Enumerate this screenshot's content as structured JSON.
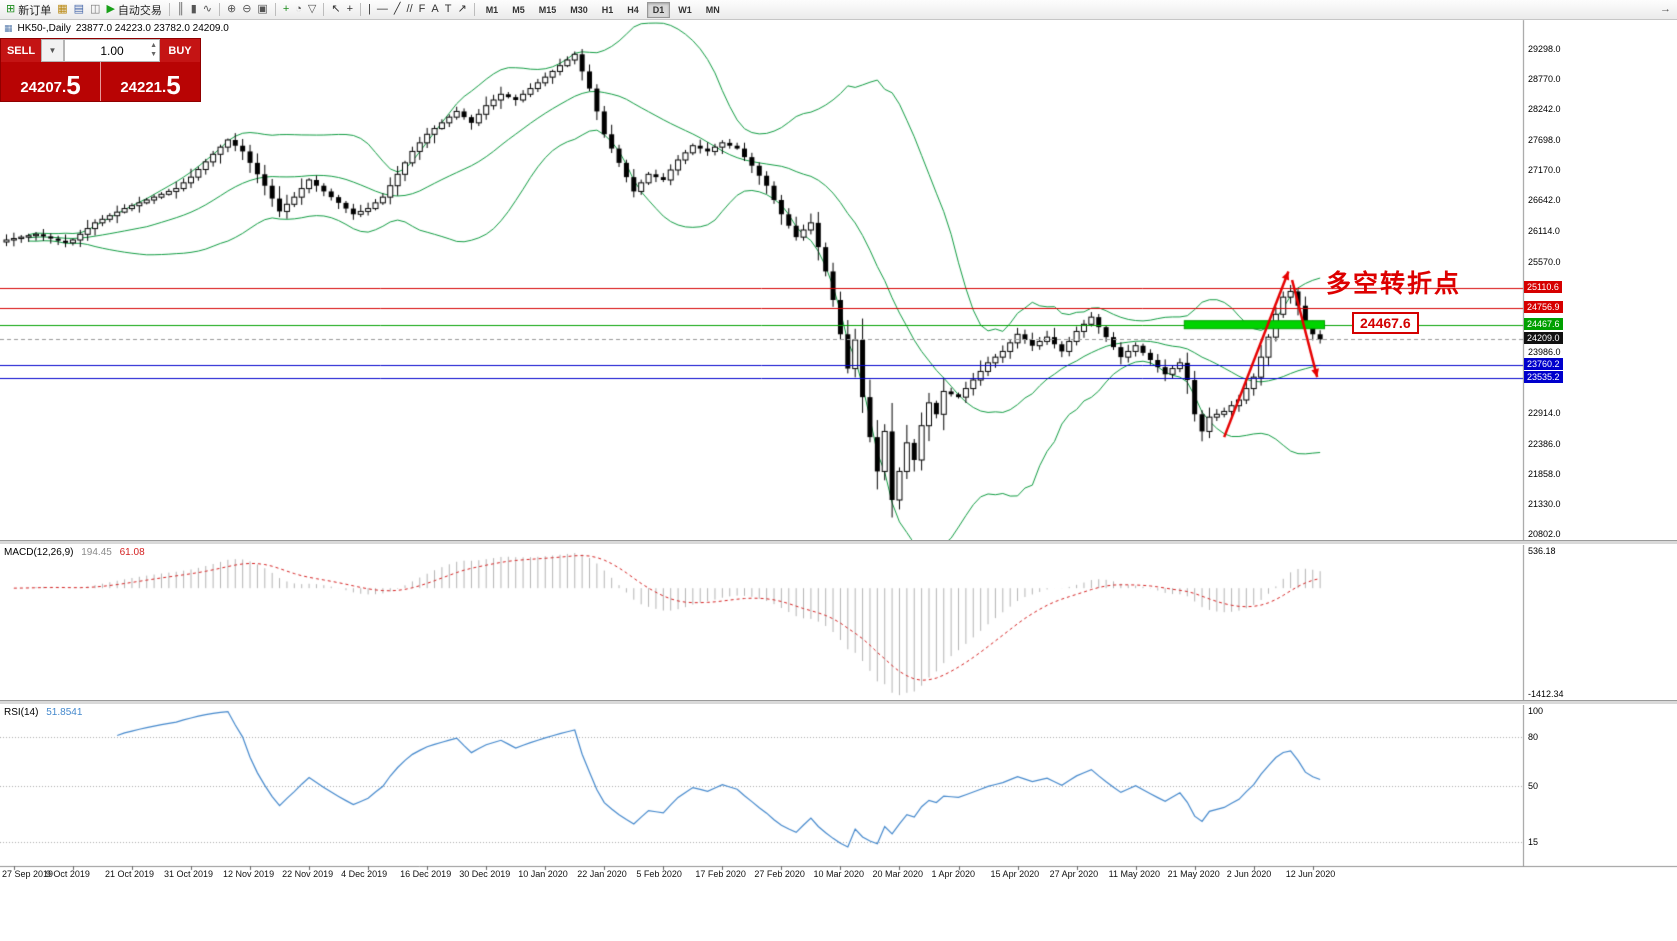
{
  "toolbar": {
    "items": [
      {
        "name": "new-order-button",
        "icon": "new-order-icon",
        "glyph": "⊞",
        "glyph_color": "#1c8c1c",
        "label": "新订单"
      },
      {
        "name": "chart-window-button",
        "icon": "chart-window-icon",
        "glyph": "▦",
        "glyph_color": "#b8860b"
      },
      {
        "name": "profiles-button",
        "icon": "profiles-icon",
        "glyph": "▤",
        "glyph_color": "#4466aa"
      },
      {
        "name": "data-window-button",
        "icon": "data-window-icon",
        "glyph": "◫",
        "glyph_color": "#777777"
      },
      {
        "name": "autotrading-button",
        "icon": "autotrading-play-icon",
        "glyph": "▶",
        "glyph_color": "#18a018",
        "label": "自动交易"
      },
      {
        "sep": true
      },
      {
        "name": "bar-chart-button",
        "icon": "bar-chart-icon",
        "glyph": "║",
        "glyph_color": "#555555"
      },
      {
        "name": "candlestick-chart-button",
        "icon": "candlestick-icon",
        "glyph": "▮",
        "glyph_color": "#555555"
      },
      {
        "name": "line-chart-button",
        "icon": "line-chart-icon",
        "glyph": "∿",
        "glyph_color": "#555555"
      },
      {
        "sep": true
      },
      {
        "name": "zoom-in-button",
        "icon": "zoom-in-icon",
        "glyph": "⊕",
        "glyph_color": "#555555"
      },
      {
        "name": "zoom-out-button",
        "icon": "zoom-out-icon",
        "glyph": "⊖",
        "glyph_color": "#555555"
      },
      {
        "name": "tile-windows-button",
        "icon": "tile-windows-icon",
        "glyph": "▣",
        "glyph_color": "#555555"
      },
      {
        "sep": true
      },
      {
        "name": "new-chart-button",
        "icon": "new-chart-icon",
        "glyph": "+",
        "glyph_color": "#1c8c1c"
      },
      {
        "name": "periods-button",
        "icon": "clock-icon",
        "glyph": "◔",
        "glyph_color": "#555555"
      },
      {
        "name": "templates-button",
        "icon": "templates-icon",
        "glyph": "▽",
        "glyph_color": "#555555"
      },
      {
        "sep": true
      },
      {
        "name": "cursor-button",
        "icon": "cursor-arrow-icon",
        "glyph": "↖",
        "glyph_color": "#333333"
      },
      {
        "name": "crosshair-button",
        "icon": "crosshair-icon",
        "glyph": "+",
        "glyph_color": "#333333"
      },
      {
        "sep": true
      },
      {
        "name": "vertical-line-button",
        "icon": "vertical-line-icon",
        "glyph": "|",
        "glyph_color": "#333333"
      },
      {
        "name": "horizontal-line-button",
        "icon": "horizontal-line-icon",
        "glyph": "—",
        "glyph_color": "#333333"
      },
      {
        "name": "trendline-button",
        "icon": "trendline-icon",
        "glyph": "╱",
        "glyph_color": "#333333"
      },
      {
        "name": "channel-button",
        "icon": "channel-icon",
        "glyph": "//",
        "glyph_color": "#333333"
      },
      {
        "name": "fibonacci-button",
        "icon": "fibonacci-icon",
        "glyph": "F",
        "glyph_color": "#333333"
      },
      {
        "name": "text-button",
        "icon": "text-icon",
        "glyph": "A",
        "glyph_color": "#333333"
      },
      {
        "name": "text-label-button",
        "icon": "text-label-icon",
        "glyph": "T",
        "glyph_color": "#333333"
      },
      {
        "name": "arrows-button",
        "icon": "arrow-objects-icon",
        "glyph": "↗",
        "glyph_color": "#333333"
      },
      {
        "sep": true
      }
    ],
    "timeframes": [
      {
        "label": "M1"
      },
      {
        "label": "M5"
      },
      {
        "label": "M15"
      },
      {
        "label": "M30"
      },
      {
        "label": "H1"
      },
      {
        "label": "H4"
      },
      {
        "label": "D1",
        "active": true
      },
      {
        "label": "W1"
      },
      {
        "label": "MN"
      }
    ],
    "right_items": [
      {
        "name": "chart-shift-button",
        "icon": "chart-shift-icon",
        "glyph": "→",
        "glyph_color": "#555555"
      }
    ]
  },
  "chart": {
    "icon": "▦",
    "title": "HK50-,Daily",
    "ohlc": "23877.0 24223.0 23782.0 24209.0"
  },
  "trade_panel": {
    "sell_label": "SELL",
    "buy_label": "BUY",
    "dropdown_icon": "▼",
    "volume": "1.00",
    "spin_up": "▲",
    "spin_down": "▼",
    "sell_price": {
      "main": "24207.",
      "big": "5"
    },
    "buy_price": {
      "main": "24221.",
      "big": "5"
    }
  },
  "price_axis": {
    "plain_labels": [
      {
        "text": "29298.0",
        "value": 29298
      },
      {
        "text": "28770.0",
        "value": 28770
      },
      {
        "text": "28242.0",
        "value": 28242
      },
      {
        "text": "27698.0",
        "value": 27698
      },
      {
        "text": "27170.0",
        "value": 27170
      },
      {
        "text": "26642.0",
        "value": 26642
      },
      {
        "text": "26114.0",
        "value": 26114
      },
      {
        "text": "25570.0",
        "value": 25570
      },
      {
        "text": "23986.0",
        "value": 23986
      },
      {
        "text": "22914.0",
        "value": 22914
      },
      {
        "text": "22386.0",
        "value": 22386
      },
      {
        "text": "21858.0",
        "value": 21858
      },
      {
        "text": "21330.0",
        "value": 21330
      },
      {
        "text": "20802.0",
        "value": 20802
      }
    ],
    "tags": [
      {
        "text": "25110.6",
        "value": 25110.6,
        "bg": "#d60000"
      },
      {
        "text": "24756.9",
        "value": 24756.9,
        "bg": "#d60000"
      },
      {
        "text": "24467.6",
        "value": 24467.6,
        "bg": "#00a000"
      },
      {
        "text": "24209.0",
        "value": 24209.0,
        "bg": "#111111"
      },
      {
        "text": "23760.2",
        "value": 23760.2,
        "bg": "#0000cc"
      },
      {
        "text": "23535.2",
        "value": 23535.2,
        "bg": "#0000cc"
      }
    ]
  },
  "indicators": {
    "macd": {
      "name": "MACD(12,26,9)",
      "value_main": "194.45",
      "value_signal": "61.08",
      "axis_top": {
        "text": "536.18",
        "value": 536.18
      },
      "axis_bottom": {
        "text": "-1412.34",
        "value": -1412.34
      },
      "hist_color": "#b4b4b4",
      "signal_color": "#d42222"
    },
    "rsi": {
      "name": "RSI(14)",
      "value": "51.8541",
      "axis_labels": [
        {
          "text": "100",
          "value": 100
        },
        {
          "text": "80",
          "value": 80
        },
        {
          "text": "50",
          "value": 50
        },
        {
          "text": "15",
          "value": 15
        }
      ],
      "levels": [
        80,
        50,
        15
      ],
      "line_color": "#4488cc"
    }
  },
  "annotations": {
    "turning_point": {
      "text": "多空转折点",
      "color": "#dd0000"
    },
    "price_callout": {
      "text": "24467.6",
      "color": "#d40000"
    }
  },
  "time_axis": [
    "27 Sep 2019",
    "9 Oct 2019",
    "21 Oct 2019",
    "31 Oct 2019",
    "12 Nov 2019",
    "22 Nov 2019",
    "4 Dec 2019",
    "16 Dec 2019",
    "30 Dec 2019",
    "10 Jan 2020",
    "22 Jan 2020",
    "5 Feb 2020",
    "17 Feb 2020",
    "27 Feb 2020",
    "10 Mar 2020",
    "20 Mar 2020",
    "1 Apr 2020",
    "15 Apr 2020",
    "27 Apr 2020",
    "11 May 2020",
    "21 May 2020",
    "2 Jun 2020",
    "12 Jun 2020"
  ],
  "chart_data": {
    "type": "candlestick",
    "symbol": "HK50-",
    "timeframe": "Daily",
    "current_ohlc": {
      "open": 23877.0,
      "high": 24223.0,
      "low": 23782.0,
      "close": 24209.0
    },
    "bars": 179,
    "bars_per_label": 8,
    "y_range": [
      20700,
      29800
    ],
    "bollinger": {
      "period": 20,
      "deviation": 2,
      "color": "#0f9b40"
    },
    "close_anchors": [
      [
        0,
        25950
      ],
      [
        4,
        26050
      ],
      [
        8,
        25900
      ],
      [
        9,
        25950
      ],
      [
        12,
        26250
      ],
      [
        16,
        26500
      ],
      [
        17,
        26550
      ],
      [
        20,
        26700
      ],
      [
        23,
        26850
      ],
      [
        25,
        27050
      ],
      [
        28,
        27450
      ],
      [
        30,
        27700
      ],
      [
        32,
        27500
      ],
      [
        33,
        27300
      ],
      [
        35,
        26900
      ],
      [
        37,
        26450
      ],
      [
        39,
        26700
      ],
      [
        41,
        27000
      ],
      [
        43,
        26800
      ],
      [
        45,
        26600
      ],
      [
        47,
        26400
      ],
      [
        49,
        26500
      ],
      [
        51,
        26700
      ],
      [
        53,
        27100
      ],
      [
        55,
        27500
      ],
      [
        57,
        27800
      ],
      [
        59,
        28000
      ],
      [
        61,
        28200
      ],
      [
        63,
        28000
      ],
      [
        65,
        28300
      ],
      [
        67,
        28500
      ],
      [
        69,
        28400
      ],
      [
        71,
        28600
      ],
      [
        73,
        28800
      ],
      [
        75,
        29000
      ],
      [
        77,
        29200
      ],
      [
        79,
        28600
      ],
      [
        81,
        27800
      ],
      [
        83,
        27300
      ],
      [
        85,
        26800
      ],
      [
        87,
        27100
      ],
      [
        89,
        27000
      ],
      [
        91,
        27350
      ],
      [
        93,
        27600
      ],
      [
        95,
        27500
      ],
      [
        97,
        27650
      ],
      [
        99,
        27550
      ],
      [
        101,
        27250
      ],
      [
        103,
        26900
      ],
      [
        105,
        26400
      ],
      [
        107,
        26000
      ],
      [
        109,
        26250
      ],
      [
        111,
        25400
      ],
      [
        112,
        24900
      ],
      [
        113,
        24300
      ],
      [
        114,
        23700
      ],
      [
        115,
        24200
      ],
      [
        116,
        23200
      ],
      [
        117,
        22500
      ],
      [
        118,
        21900
      ],
      [
        119,
        22600
      ],
      [
        120,
        21400
      ],
      [
        121,
        21900
      ],
      [
        122,
        22400
      ],
      [
        123,
        22100
      ],
      [
        124,
        22700
      ],
      [
        125,
        23100
      ],
      [
        126,
        22900
      ],
      [
        127,
        23300
      ],
      [
        129,
        23200
      ],
      [
        131,
        23500
      ],
      [
        133,
        23800
      ],
      [
        135,
        24000
      ],
      [
        137,
        24300
      ],
      [
        139,
        24100
      ],
      [
        141,
        24250
      ],
      [
        143,
        24000
      ],
      [
        145,
        24350
      ],
      [
        147,
        24600
      ],
      [
        149,
        24250
      ],
      [
        151,
        23900
      ],
      [
        153,
        24100
      ],
      [
        155,
        23850
      ],
      [
        157,
        23600
      ],
      [
        159,
        23800
      ],
      [
        160,
        23500
      ],
      [
        161,
        22900
      ],
      [
        162,
        22600
      ],
      [
        163,
        22850
      ],
      [
        165,
        22950
      ],
      [
        167,
        23150
      ],
      [
        169,
        23550
      ],
      [
        170,
        23900
      ],
      [
        171,
        24250
      ],
      [
        172,
        24650
      ],
      [
        173,
        24950
      ],
      [
        174,
        25050
      ],
      [
        175,
        24800
      ],
      [
        176,
        24450
      ],
      [
        177,
        24300
      ],
      [
        178,
        24209
      ]
    ],
    "horizontal_lines": [
      {
        "value": 25110.6,
        "color": "#d60000",
        "dash": false
      },
      {
        "value": 24756.9,
        "color": "#d60000",
        "dash": false
      },
      {
        "value": 24467.6,
        "color": "#00a000",
        "dash": false
      },
      {
        "value": 24209.0,
        "color": "#999999",
        "dash": true
      },
      {
        "value": 23760.2,
        "color": "#0000cc",
        "dash": false
      },
      {
        "value": 23535.2,
        "color": "#0000cc",
        "dash": false
      }
    ],
    "support_zone": {
      "value": 24467.6,
      "from_bar": 160,
      "to_bar": 179,
      "color": "#00d400",
      "edge": "#00a000",
      "thickness": 8
    },
    "trend_arrow": {
      "color": "#e60000",
      "up": [
        [
          165,
          22500
        ],
        [
          173.7,
          25400
        ]
      ],
      "down": [
        [
          174.2,
          25250
        ],
        [
          177.6,
          23550
        ]
      ]
    }
  }
}
